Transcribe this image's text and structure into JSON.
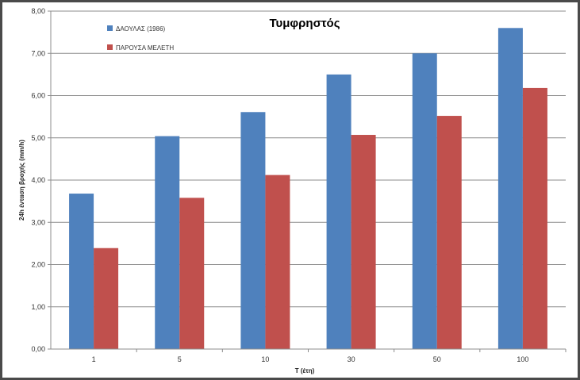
{
  "chart_data": {
    "type": "bar",
    "title": "Τυμφρηστός",
    "xlabel": "T (έτη)",
    "ylabel": "24h ένταση βροχής (mm/h)",
    "categories": [
      "1",
      "5",
      "10",
      "30",
      "50",
      "100"
    ],
    "ylim": [
      0,
      8
    ],
    "yticks": [
      "0,00",
      "1,00",
      "2,00",
      "3,00",
      "4,00",
      "5,00",
      "6,00",
      "7,00",
      "8,00"
    ],
    "grid": true,
    "legend_position": "top-left",
    "series": [
      {
        "name": "ΔΑΟΥΛΑΣ (1986)",
        "color": "#4f81bd",
        "values": [
          3.68,
          5.04,
          5.61,
          6.5,
          7.0,
          7.6
        ]
      },
      {
        "name": "ΠΑΡΟΥΣΑ ΜΕΛΕΤΗ",
        "color": "#c0504d",
        "values": [
          2.39,
          3.58,
          4.12,
          5.07,
          5.52,
          6.18
        ]
      }
    ]
  }
}
